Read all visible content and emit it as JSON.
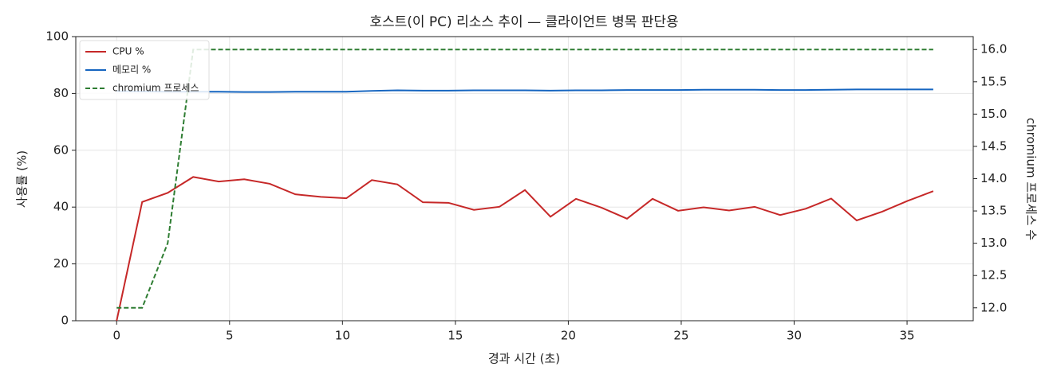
{
  "chart_data": {
    "type": "line",
    "title": "호스트(이 PC) 리소스 추이 — 클라이언트 병목 판단용",
    "xlabel": "경과 시간 (초)",
    "ylabel": "사용률 (%)",
    "y2label": "chromium 프로세스 수",
    "x": [
      0,
      1.13,
      2.26,
      3.39,
      4.52,
      5.65,
      6.78,
      7.91,
      9.04,
      10.17,
      11.3,
      12.43,
      13.56,
      14.69,
      15.82,
      16.95,
      18.08,
      19.21,
      20.34,
      21.47,
      22.6,
      23.73,
      24.86,
      25.99,
      27.12,
      28.25,
      29.38,
      30.51,
      31.64,
      32.77,
      33.9,
      35.03,
      36.16
    ],
    "series": [
      {
        "name": "CPU %",
        "color": "#c62828",
        "style": "solid",
        "values": [
          0,
          41.8,
          45,
          50.6,
          49,
          49.8,
          48.2,
          44.5,
          43.6,
          43.1,
          49.5,
          48,
          41.7,
          41.5,
          39,
          40.1,
          46,
          36.6,
          42.9,
          39.8,
          35.9,
          42.9,
          38.7,
          39.9,
          38.8,
          40.1,
          37.2,
          39.4,
          43,
          35.3,
          38.4,
          42.2,
          45.6
        ]
      },
      {
        "name": "메모리 %",
        "color": "#1565c0",
        "style": "solid",
        "values": [
          80.8,
          80.7,
          80.6,
          80.6,
          80.6,
          80.5,
          80.5,
          80.6,
          80.6,
          80.6,
          80.9,
          81.1,
          81,
          81,
          81.1,
          81.1,
          81.1,
          81,
          81.1,
          81.1,
          81.2,
          81.2,
          81.2,
          81.3,
          81.3,
          81.3,
          81.2,
          81.2,
          81.3,
          81.4,
          81.4,
          81.4,
          81.4
        ]
      },
      {
        "name": "chromium 프로세스",
        "color": "#2e7d32",
        "style": "dashed",
        "axis": "y2",
        "values": [
          12,
          12,
          13,
          16,
          16,
          16,
          16,
          16,
          16,
          16,
          16,
          16,
          16,
          16,
          16,
          16,
          16,
          16,
          16,
          16,
          16,
          16,
          16,
          16,
          16,
          16,
          16,
          16,
          16,
          16,
          16,
          16,
          16
        ]
      }
    ],
    "xlim": [
      -1.81,
      37.93
    ],
    "xticks": [
      0,
      5,
      10,
      15,
      20,
      25,
      30,
      35
    ],
    "ylim": [
      0,
      100
    ],
    "yticks": [
      0,
      20,
      40,
      60,
      80,
      100
    ],
    "y2lim": [
      11.8,
      16.2
    ],
    "y2ticks": [
      {
        "value": 12,
        "label": "12.0"
      },
      {
        "value": 12.5,
        "label": "12.5"
      },
      {
        "value": 13,
        "label": "13.0"
      },
      {
        "value": 13.5,
        "label": "13.5"
      },
      {
        "value": 14,
        "label": "14.0"
      },
      {
        "value": 14.5,
        "label": "14.5"
      },
      {
        "value": 15,
        "label": "15.0"
      },
      {
        "value": 15.5,
        "label": "15.5"
      },
      {
        "value": 16,
        "label": "16.0"
      }
    ],
    "grid": true,
    "legend": "upper-left"
  }
}
